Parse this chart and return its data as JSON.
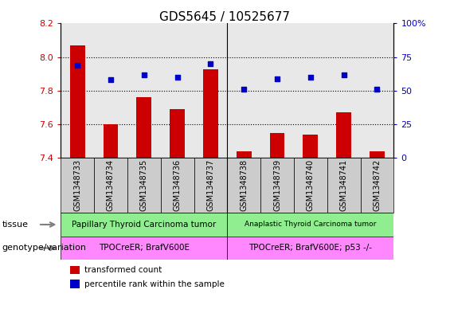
{
  "title": "GDS5645 / 10525677",
  "samples": [
    "GSM1348733",
    "GSM1348734",
    "GSM1348735",
    "GSM1348736",
    "GSM1348737",
    "GSM1348738",
    "GSM1348739",
    "GSM1348740",
    "GSM1348741",
    "GSM1348742"
  ],
  "transformed_count": [
    8.07,
    7.6,
    7.76,
    7.69,
    7.93,
    7.44,
    7.55,
    7.54,
    7.67,
    7.44
  ],
  "percentile_rank": [
    69,
    58,
    62,
    60,
    70,
    51,
    59,
    60,
    62,
    51
  ],
  "ylim": [
    7.4,
    8.2
  ],
  "y2lim": [
    0,
    100
  ],
  "yticks": [
    7.4,
    7.6,
    7.8,
    8.0,
    8.2
  ],
  "y2ticks": [
    0,
    25,
    50,
    75,
    100
  ],
  "tissue_labels": [
    "Papillary Thyroid Carcinoma tumor",
    "Anaplastic Thyroid Carcinoma tumor"
  ],
  "genotype_labels": [
    "TPOCreER; BrafV600E",
    "TPOCreER; BrafV600E; p53 -/-"
  ],
  "tissue_color": "#90EE90",
  "genotype_color": "#FF88FF",
  "bar_color": "#CC0000",
  "dot_color": "#0000CC",
  "bar_bottom": 7.4,
  "tick_label_color_left": "#CC0000",
  "tick_label_color_right": "#0000CC",
  "legend_items": [
    {
      "label": "transformed count",
      "color": "#CC0000"
    },
    {
      "label": "percentile rank within the sample",
      "color": "#0000CC"
    }
  ],
  "tissue_row_label": "tissue",
  "genotype_row_label": "genotype/variation",
  "separator_index": 5,
  "sample_bg_color": "#cccccc",
  "grid_yticks": [
    7.6,
    7.8,
    8.0
  ]
}
